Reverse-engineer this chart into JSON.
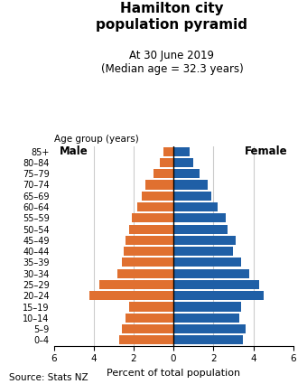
{
  "title_line1": "Hamilton city",
  "title_line2": "population pyramid",
  "subtitle1": "At 30 June 2019",
  "subtitle2": "(Median age = 32.3 years)",
  "age_groups": [
    "0–4",
    "5–9",
    "10–14",
    "15–19",
    "20–24",
    "25–29",
    "30–34",
    "35–39",
    "40–44",
    "45–49",
    "50–54",
    "55–59",
    "60–64",
    "65–69",
    "70–74",
    "75–79",
    "80–84",
    "85+"
  ],
  "male": [
    2.7,
    2.6,
    2.4,
    2.2,
    4.2,
    3.7,
    2.8,
    2.6,
    2.5,
    2.4,
    2.2,
    2.1,
    1.8,
    1.6,
    1.4,
    1.0,
    0.7,
    0.5
  ],
  "female": [
    3.5,
    3.6,
    3.3,
    3.4,
    4.5,
    4.3,
    3.8,
    3.4,
    3.0,
    3.1,
    2.7,
    2.6,
    2.2,
    1.9,
    1.7,
    1.3,
    1.0,
    0.8
  ],
  "male_color": "#E07030",
  "female_color": "#1F5FA6",
  "xlabel": "Percent of total population",
  "age_group_label": "Age group (years)",
  "male_label": "Male",
  "female_label": "Female",
  "source": "Source: Stats NZ",
  "xlim": 6,
  "background_color": "#ffffff"
}
